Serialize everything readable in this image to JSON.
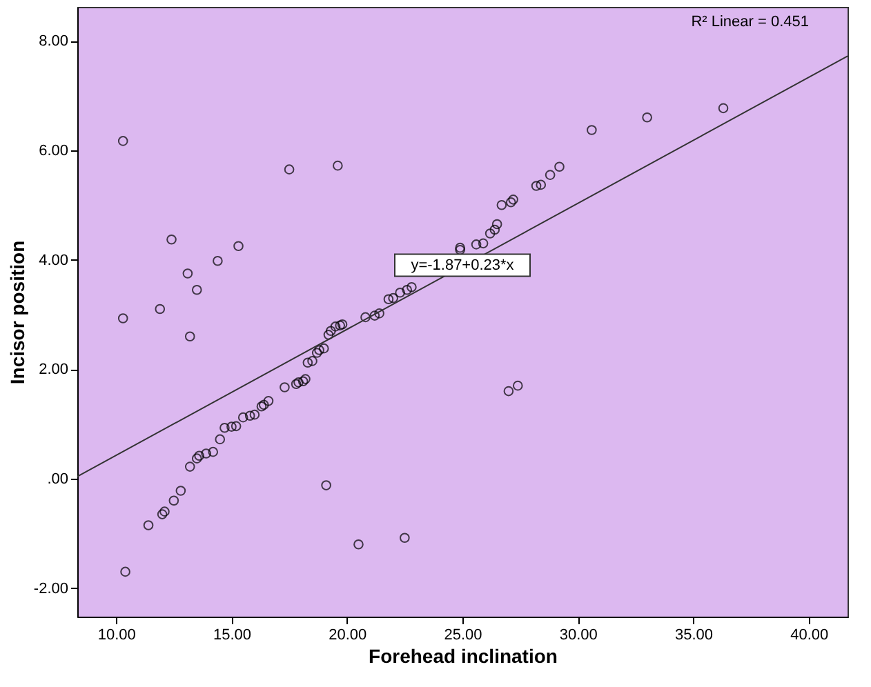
{
  "chart_data": {
    "type": "scatter",
    "xlabel": "Forehead inclination",
    "ylabel": "Incisor position",
    "xlim": [
      8.32,
      41.68
    ],
    "ylim": [
      -2.52,
      8.62
    ],
    "xticks": [
      {
        "value": 10,
        "label": "10.00"
      },
      {
        "value": 15,
        "label": "15.00"
      },
      {
        "value": 20,
        "label": "20.00"
      },
      {
        "value": 25,
        "label": "25.00"
      },
      {
        "value": 30,
        "label": "30.00"
      },
      {
        "value": 35,
        "label": "35.00"
      },
      {
        "value": 40,
        "label": "40.00"
      }
    ],
    "yticks": [
      {
        "value": -2,
        "label": "-2.00"
      },
      {
        "value": 0,
        "label": ".00"
      },
      {
        "value": 2,
        "label": "2.00"
      },
      {
        "value": 4,
        "label": "4.00"
      },
      {
        "value": 6,
        "label": "6.00"
      },
      {
        "value": 8,
        "label": "8.00"
      }
    ],
    "grid": false,
    "marker": "circle",
    "annotations": [
      "R² Linear = 0.451",
      {
        "text": "y=-1.87+0.23*x",
        "x": 25,
        "y": 3.9
      }
    ],
    "series": [
      {
        "color": "#000000",
        "x": [
          10.3,
          10.3,
          11.9,
          12.4,
          13.1,
          13.2,
          13.5,
          14.4,
          15.3,
          17.5,
          19.6,
          19.1,
          20.5,
          22.5,
          27.0,
          27.4,
          10.4,
          11.4,
          12.0,
          12.1,
          12.5,
          12.8,
          13.2,
          13.5,
          13.6,
          13.9,
          14.2,
          14.5,
          14.7,
          15.0,
          15.2,
          15.5,
          15.8,
          16.0,
          16.3,
          16.4,
          16.6,
          17.3,
          17.8,
          17.9,
          18.1,
          18.2,
          18.3,
          18.5,
          18.7,
          18.8,
          19.0,
          19.2,
          19.3,
          19.5,
          19.7,
          19.8,
          20.8,
          21.2,
          21.4,
          21.8,
          22.0,
          22.3,
          22.6,
          22.8,
          24.9,
          24.9,
          25.6,
          25.9,
          26.2,
          26.4,
          26.5,
          26.7,
          27.1,
          27.2,
          28.2,
          28.4,
          28.8,
          29.2,
          30.6,
          33.0,
          36.3
        ],
        "values": [
          6.17,
          2.93,
          3.1,
          4.37,
          3.75,
          2.6,
          3.45,
          3.98,
          4.25,
          5.65,
          5.72,
          -0.12,
          -1.2,
          -1.08,
          1.6,
          1.7,
          -1.7,
          -0.85,
          -0.65,
          -0.6,
          -0.4,
          -0.22,
          0.22,
          0.37,
          0.42,
          0.46,
          0.49,
          0.72,
          0.93,
          0.95,
          0.96,
          1.12,
          1.15,
          1.17,
          1.32,
          1.35,
          1.42,
          1.67,
          1.73,
          1.76,
          1.78,
          1.82,
          2.12,
          2.15,
          2.3,
          2.35,
          2.38,
          2.63,
          2.7,
          2.78,
          2.8,
          2.82,
          2.95,
          2.98,
          3.02,
          3.28,
          3.3,
          3.4,
          3.45,
          3.5,
          4.22,
          4.18,
          4.28,
          4.3,
          4.48,
          4.55,
          4.65,
          5.0,
          5.05,
          5.1,
          5.35,
          5.37,
          5.55,
          5.7,
          6.37,
          6.6,
          6.77
        ]
      },
      {
        "type": "line",
        "color": "#333333",
        "x": [
          8.32,
          41.68
        ],
        "values": [
          0.04,
          7.72
        ],
        "line_style": "solid",
        "marker": "none"
      }
    ]
  }
}
